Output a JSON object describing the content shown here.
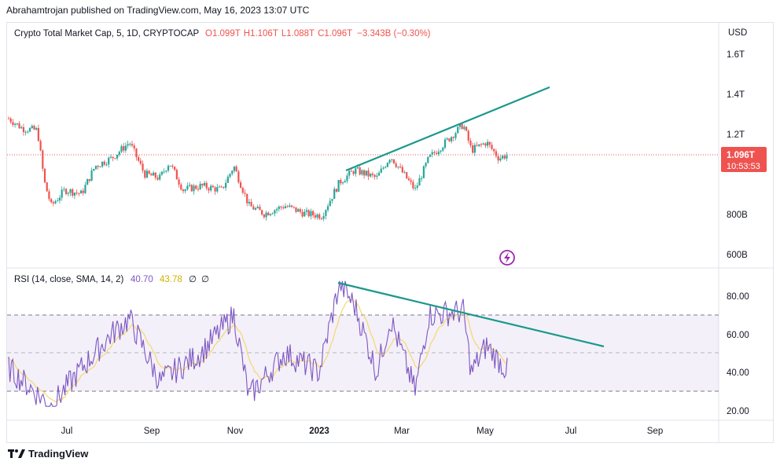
{
  "header": {
    "published_text": "Abrahamtrojan published on TradingView.com, May 16, 2023 13:07 UTC"
  },
  "legend": {
    "symbol": "Crypto Total Market Cap, 5, 1D, CRYPTOCAP",
    "open": "O1.099T",
    "high": "H1.106T",
    "low": "L1.088T",
    "close": "C1.096T",
    "change": "−3.343B (−0.30%)"
  },
  "price_axis": {
    "currency": "USD",
    "labels": [
      "1.6T",
      "1.4T",
      "1.2T",
      "800B",
      "600B"
    ]
  },
  "price_badge": {
    "value": "1.096T",
    "countdown": "10:53:53"
  },
  "rsi_legend": {
    "label": "RSI (14, close, SMA, 14, 2)",
    "rsi": "40.70",
    "sma": "43.78",
    "v3": "∅",
    "v4": "∅"
  },
  "rsi_axis": {
    "labels": [
      "80.00",
      "60.00",
      "40.00",
      "20.00"
    ]
  },
  "time_axis": {
    "labels": [
      "Jul",
      "Sep",
      "Nov",
      "2023",
      "Mar",
      "May",
      "Jul",
      "Sep"
    ]
  },
  "footer": {
    "brand": "TradingView"
  },
  "colors": {
    "up": "#26a69a",
    "down": "#ef5350",
    "rsi": "#7e57c2",
    "sma": "#f5d76e",
    "trend": "#1b998b",
    "price_line": "#ef5350"
  },
  "chart_data": [
    {
      "type": "candlestick",
      "title": "Crypto Total Market Cap, 5, 1D, CRYPTOCAP",
      "ylabel": "USD",
      "x_range": [
        "2023-05-01",
        "2023-10-20"
      ],
      "y_ticks": [
        600,
        800,
        1200,
        1400,
        1600
      ],
      "approx_close_path_B": [
        [
          "2022-05-18",
          1280
        ],
        [
          "2022-05-28",
          1230
        ],
        [
          "2022-06-08",
          1220
        ],
        [
          "2022-06-13",
          960
        ],
        [
          "2022-06-18",
          840
        ],
        [
          "2022-06-28",
          920
        ],
        [
          "2022-07-10",
          900
        ],
        [
          "2022-07-20",
          1040
        ],
        [
          "2022-08-01",
          1080
        ],
        [
          "2022-08-14",
          1160
        ],
        [
          "2022-08-25",
          1000
        ],
        [
          "2022-09-05",
          980
        ],
        [
          "2022-09-12",
          1060
        ],
        [
          "2022-09-22",
          920
        ],
        [
          "2022-10-05",
          940
        ],
        [
          "2022-10-20",
          920
        ],
        [
          "2022-10-29",
          1040
        ],
        [
          "2022-11-09",
          840
        ],
        [
          "2022-11-20",
          800
        ],
        [
          "2022-12-05",
          840
        ],
        [
          "2022-12-20",
          800
        ],
        [
          "2023-01-01",
          790
        ],
        [
          "2023-01-14",
          960
        ],
        [
          "2023-01-25",
          1020
        ],
        [
          "2023-02-10",
          980
        ],
        [
          "2023-02-20",
          1090
        ],
        [
          "2023-03-10",
          920
        ],
        [
          "2023-03-20",
          1080
        ],
        [
          "2023-04-01",
          1160
        ],
        [
          "2023-04-14",
          1250
        ],
        [
          "2023-04-20",
          1120
        ],
        [
          "2023-05-01",
          1160
        ],
        [
          "2023-05-10",
          1080
        ],
        [
          "2023-05-16",
          1096
        ]
      ],
      "last_close": "1.096T",
      "annotations": [
        "rising trendline from Jan 2023 across Apr 2023 high"
      ]
    },
    {
      "type": "line",
      "title": "RSI (14, close, SMA, 14, 2)",
      "y_ticks": [
        20,
        40,
        60,
        80
      ],
      "bands": [
        30,
        50,
        70
      ],
      "series": [
        {
          "name": "RSI",
          "values": [
            [
              "2022-05-18",
              42
            ],
            [
              "2022-06-18",
              22
            ],
            [
              "2022-07-10",
              42
            ],
            [
              "2022-08-01",
              60
            ],
            [
              "2022-08-14",
              68
            ],
            [
              "2022-09-05",
              35
            ],
            [
              "2022-10-05",
              50
            ],
            [
              "2022-10-29",
              70
            ],
            [
              "2022-11-09",
              27
            ],
            [
              "2022-12-05",
              50
            ],
            [
              "2022-12-30",
              40
            ],
            [
              "2023-01-14",
              87
            ],
            [
              "2023-01-25",
              75
            ],
            [
              "2023-02-10",
              40
            ],
            [
              "2023-02-20",
              68
            ],
            [
              "2023-03-10",
              30
            ],
            [
              "2023-03-20",
              70
            ],
            [
              "2023-04-14",
              72
            ],
            [
              "2023-04-20",
              40
            ],
            [
              "2023-05-01",
              54
            ],
            [
              "2023-05-16",
              40.7
            ]
          ]
        },
        {
          "name": "SMA",
          "last": 43.78
        }
      ],
      "annotations": [
        "falling trendline from Jan 2023 RSI peak"
      ]
    }
  ]
}
